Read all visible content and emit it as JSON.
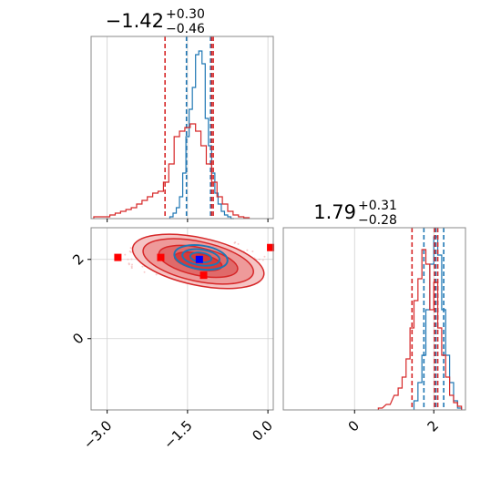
{
  "chart_data": [
    {
      "type": "histogram",
      "panel": "marginal-param-1",
      "title": {
        "value": "−1.42",
        "plus": "+0.30",
        "minus": "−0.46"
      },
      "xlim": [
        -3.3,
        0.1
      ],
      "ylim": [
        0,
        1.0
      ],
      "grid": true,
      "series": [
        {
          "color": "#1f77b4",
          "bin_centers": [
            -1.8,
            -1.74,
            -1.68,
            -1.62,
            -1.56,
            -1.5,
            -1.44,
            -1.38,
            -1.32,
            -1.26,
            -1.2,
            -1.14,
            -1.08,
            -1.02,
            -0.96,
            -0.9,
            -0.84,
            -0.78,
            -0.72,
            -0.66
          ],
          "heights": [
            0.01,
            0.03,
            0.06,
            0.12,
            0.25,
            0.45,
            0.6,
            0.72,
            0.9,
            0.92,
            0.85,
            0.55,
            0.4,
            0.25,
            0.14,
            0.08,
            0.04,
            0.02,
            0.01,
            0.0
          ],
          "quantile_lines": [
            -1.52,
            -1.07,
            -1.06
          ]
        },
        {
          "color": "#d62728",
          "bin_centers": [
            -3.2,
            -3.1,
            -3.0,
            -2.9,
            -2.8,
            -2.7,
            -2.6,
            -2.5,
            -2.4,
            -2.3,
            -2.2,
            -2.1,
            -2.0,
            -1.9,
            -1.8,
            -1.7,
            -1.6,
            -1.5,
            -1.4,
            -1.3,
            -1.2,
            -1.1,
            -1.0,
            -0.9,
            -0.8,
            -0.7,
            -0.6,
            -0.5,
            -0.4
          ],
          "heights": [
            0.01,
            0.01,
            0.01,
            0.02,
            0.03,
            0.04,
            0.05,
            0.06,
            0.08,
            0.1,
            0.12,
            0.14,
            0.15,
            0.2,
            0.3,
            0.45,
            0.48,
            0.5,
            0.52,
            0.48,
            0.4,
            0.3,
            0.2,
            0.12,
            0.08,
            0.04,
            0.02,
            0.01,
            0.005
          ],
          "quantile_lines": [
            -1.92,
            -1.02,
            -1.05
          ]
        }
      ]
    },
    {
      "type": "contour",
      "panel": "joint-density",
      "xlim": [
        -3.3,
        0.1
      ],
      "ylim": [
        -1.8,
        2.8
      ],
      "xticks": [
        "−3.0",
        "−1.5",
        "0.0"
      ],
      "yticks": [
        "0",
        "2"
      ],
      "xtick_values": [
        -3.0,
        -1.5,
        0.0
      ],
      "ytick_values": [
        0,
        2
      ],
      "grid": true,
      "series": [
        {
          "color": "#d62728",
          "contour_centers": [
            -1.3,
            1.95
          ],
          "contour_radii": [
            [
              0.45,
              0.2
            ],
            [
              0.75,
              0.35
            ],
            [
              1.05,
              0.5
            ],
            [
              1.25,
              0.6
            ]
          ],
          "markers": [
            [
              -2.8,
              2.05
            ],
            [
              -2.0,
              2.05
            ],
            [
              -1.2,
              1.6
            ],
            [
              0.05,
              2.3
            ]
          ]
        },
        {
          "color": "#1f77b4",
          "contour_centers": [
            -1.25,
            2.05
          ],
          "contour_radii": [
            [
              0.2,
              0.12
            ],
            [
              0.35,
              0.2
            ],
            [
              0.5,
              0.3
            ]
          ],
          "markers": [
            [
              -1.28,
              2.0
            ]
          ]
        }
      ]
    },
    {
      "type": "histogram",
      "panel": "marginal-param-2",
      "title": {
        "value": "1.79",
        "plus": "+0.31",
        "minus": "−0.28"
      },
      "xlim": [
        -1.8,
        2.8
      ],
      "ylim": [
        0,
        1.0
      ],
      "xticks": [
        "0",
        "2"
      ],
      "xtick_values": [
        0,
        2
      ],
      "grid": true,
      "series": [
        {
          "color": "#1f77b4",
          "bin_centers": [
            1.55,
            1.65,
            1.75,
            1.85,
            1.95,
            2.05,
            2.15,
            2.25,
            2.35,
            2.45,
            2.55,
            2.65
          ],
          "heights": [
            0.05,
            0.15,
            0.3,
            0.55,
            0.8,
            0.95,
            0.85,
            0.55,
            0.3,
            0.15,
            0.05,
            0.01
          ],
          "quantile_lines": [
            1.75,
            2.25,
            2.05
          ]
        },
        {
          "color": "#d62728",
          "bin_centers": [
            0.65,
            0.85,
            1.05,
            1.15,
            1.25,
            1.35,
            1.45,
            1.55,
            1.65,
            1.75,
            1.85,
            1.95,
            2.05,
            2.15,
            2.25,
            2.35,
            2.45,
            2.55,
            2.65
          ],
          "heights": [
            0.01,
            0.03,
            0.08,
            0.12,
            0.18,
            0.28,
            0.45,
            0.6,
            0.72,
            0.88,
            0.8,
            0.55,
            0.7,
            0.45,
            0.3,
            0.18,
            0.08,
            0.04,
            0.02
          ],
          "quantile_lines": [
            1.45,
            2.1,
            2.02
          ]
        }
      ]
    }
  ]
}
